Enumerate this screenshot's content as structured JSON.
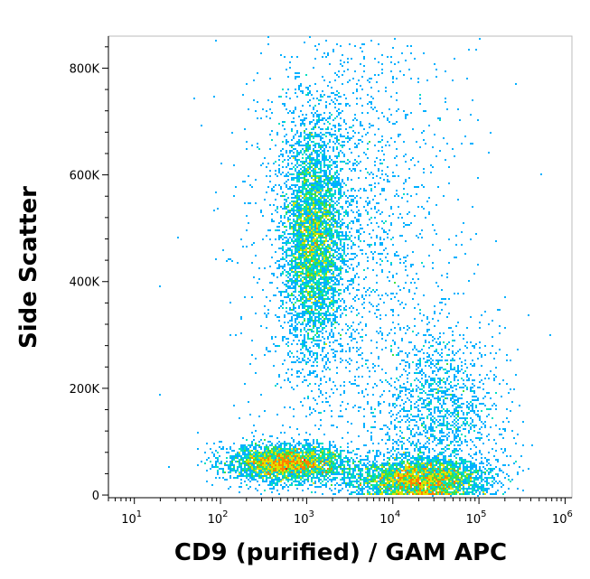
{
  "chart_data": {
    "type": "scatter",
    "subtype": "flow-cytometry-density-dot-plot",
    "title": "",
    "xlabel": "CD9 (purified) / GAM APC",
    "ylabel": "Side Scatter",
    "x_scale": "log",
    "xlim": [
      5,
      1200000
    ],
    "ylim": [
      -5000,
      860000
    ],
    "x_tick_labels": [
      {
        "value": 10,
        "base": "10",
        "exp": "1"
      },
      {
        "value": 100,
        "base": "10",
        "exp": "2"
      },
      {
        "value": 1000,
        "base": "10",
        "exp": "3"
      },
      {
        "value": 10000,
        "base": "10",
        "exp": "4"
      },
      {
        "value": 100000,
        "base": "10",
        "exp": "5"
      },
      {
        "value": 1000000,
        "base": "10",
        "exp": "6"
      }
    ],
    "y_ticks": [
      0,
      200000,
      400000,
      600000,
      800000
    ],
    "y_tick_labels": [
      "0",
      "200K",
      "400K",
      "600K",
      "800K"
    ],
    "grid": false,
    "colormap": [
      "#0000ff",
      "#00b0ff",
      "#00e0c0",
      "#40e040",
      "#e0e000",
      "#ff8000",
      "#ff0000"
    ],
    "populations": [
      {
        "x_center": 600,
        "y_center": 60000,
        "x_spread_decades": 0.35,
        "y_spread": 18000,
        "n": 3200,
        "peak_density": "high"
      },
      {
        "x_center": 20000,
        "y_center": 30000,
        "x_spread_decades": 0.4,
        "y_spread": 20000,
        "n": 3200,
        "peak_density": "high"
      },
      {
        "x_center": 1200,
        "y_center": 480000,
        "x_spread_decades": 0.18,
        "y_spread": 110000,
        "n": 4200,
        "peak_density": "medium"
      },
      {
        "x_center": 35000,
        "y_center": 140000,
        "x_spread_decades": 0.35,
        "y_spread": 90000,
        "n": 1600,
        "peak_density": "low"
      },
      {
        "x_center": 3000,
        "y_center": 500000,
        "x_spread_decades": 0.6,
        "y_spread": 230000,
        "n": 2000,
        "peak_density": "sparse"
      }
    ]
  }
}
